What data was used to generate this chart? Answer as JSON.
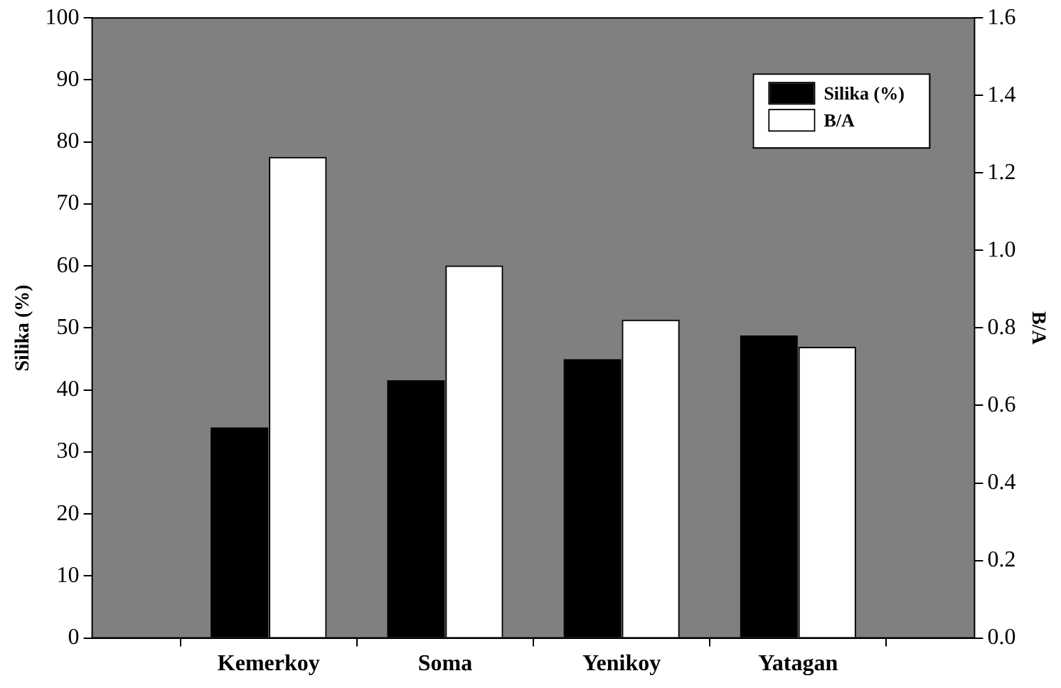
{
  "chart_data": {
    "type": "bar",
    "categories": [
      null,
      "Kemerkoy",
      "Soma",
      "Yenikoy",
      "Yatagan",
      null
    ],
    "series": [
      {
        "name": "Silika (%)",
        "color": "#000000",
        "values": [
          null,
          33.9,
          41.5,
          44.9,
          48.7,
          null
        ]
      },
      {
        "name": "B/A",
        "color": "#ffffff",
        "axis": "y2",
        "values": [
          null,
          1.24,
          0.96,
          0.82,
          0.75,
          null
        ]
      }
    ],
    "ylabel": "Silika (%)",
    "y2label": "B/A",
    "ylim": [
      0,
      100
    ],
    "yticks": [
      0,
      10,
      20,
      30,
      40,
      50,
      60,
      70,
      80,
      90,
      100
    ],
    "y2lim": [
      0,
      1.6
    ],
    "y2ticks": [
      {
        "value": 0,
        "label": "0.0"
      },
      {
        "value": 0.2,
        "label": "0.2"
      },
      {
        "value": 0.4,
        "label": "0.4"
      },
      {
        "value": 0.6,
        "label": "0.6"
      },
      {
        "value": 0.8,
        "label": "0.8"
      },
      {
        "value": 1,
        "label": "1.0"
      },
      {
        "value": 1.2,
        "label": "1.2"
      },
      {
        "value": 1.4,
        "label": "1.4"
      },
      {
        "value": 1.6,
        "label": "1.6"
      }
    ],
    "legend": "top right",
    "grid": false
  }
}
